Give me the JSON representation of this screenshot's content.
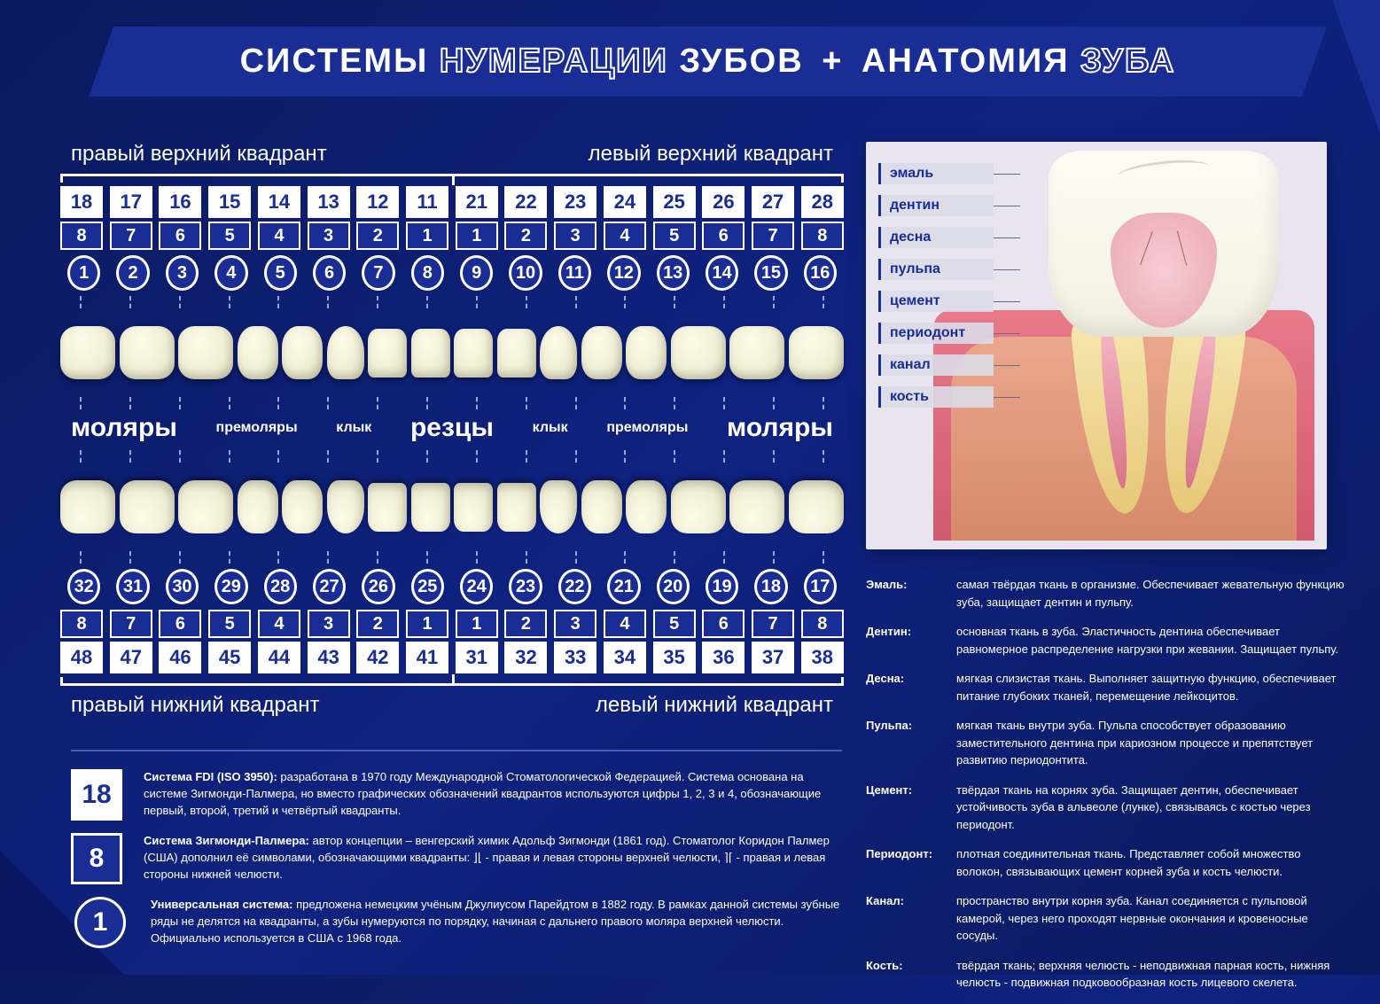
{
  "title": {
    "part1": "СИСТЕМЫ ",
    "part2_outline": "НУМЕРАЦИИ",
    "part3": " ЗУБОВ ",
    "plus": "+",
    "part4": " АНАТОМИЯ ",
    "part5_outline": "ЗУБА"
  },
  "colors": {
    "bg_dark": "#0a1a5e",
    "bg_mid": "#0f2280",
    "panel_blue": "#1a2d95",
    "white": "#ffffff",
    "tooth_light": "#fcfbe8",
    "tooth_shadow": "#e8e5c5",
    "gum": "#e87a8a",
    "bone": "#f0c890",
    "pulp": "#f5b8c4"
  },
  "quadrants": {
    "ur": "правый верхний квадрант",
    "ul": "левый верхний квадрант",
    "lr": "правый нижний квадрант",
    "ll": "левый нижний квадрант"
  },
  "upper": {
    "fdi": [
      "18",
      "17",
      "16",
      "15",
      "14",
      "13",
      "12",
      "11",
      "21",
      "22",
      "23",
      "24",
      "25",
      "26",
      "27",
      "28"
    ],
    "palmer": [
      "8",
      "7",
      "6",
      "5",
      "4",
      "3",
      "2",
      "1",
      "1",
      "2",
      "3",
      "4",
      "5",
      "6",
      "7",
      "8"
    ],
    "univ": [
      "1",
      "2",
      "3",
      "4",
      "5",
      "6",
      "7",
      "8",
      "9",
      "10",
      "11",
      "12",
      "13",
      "14",
      "15",
      "16"
    ]
  },
  "lower": {
    "univ": [
      "32",
      "31",
      "30",
      "29",
      "28",
      "27",
      "26",
      "25",
      "24",
      "23",
      "22",
      "21",
      "20",
      "19",
      "18",
      "17"
    ],
    "palmer": [
      "8",
      "7",
      "6",
      "5",
      "4",
      "3",
      "2",
      "1",
      "1",
      "2",
      "3",
      "4",
      "5",
      "6",
      "7",
      "8"
    ],
    "fdi": [
      "48",
      "47",
      "46",
      "45",
      "44",
      "43",
      "42",
      "41",
      "31",
      "32",
      "33",
      "34",
      "35",
      "36",
      "37",
      "38"
    ]
  },
  "tooth_types": {
    "molars": "моляры",
    "premolars": "премоляры",
    "canine": "клык",
    "incisors": "резцы"
  },
  "tooth_shape_seq": [
    "molar",
    "molar",
    "molar",
    "premolar",
    "premolar",
    "canine",
    "incisor",
    "incisor",
    "incisor",
    "incisor",
    "canine",
    "premolar",
    "premolar",
    "molar",
    "molar",
    "molar"
  ],
  "legend": {
    "fdi": {
      "badge": "18",
      "title": "Система FDI (ISO 3950):",
      "text": "разработана в 1970 году Международной Стоматологической Федерацией. Система основана на системе Зигмонди-Палмера, но вместо графических обозначений квадрантов используются цифры 1, 2, 3 и 4, обозначающие первый, второй, третий и четвёртый квадранты."
    },
    "palmer": {
      "badge": "8",
      "title": "Система Зигмонди-Палмера:",
      "text": "автор концепции – венгерский химик Адольф Зигмонди (1861 год). Стоматолог Коридон Палмер (США) дополнил её символами, обозначающими квадранты: ⌋⌊ - правая и левая стороны верхней челюсти, ⌉⌈ - правая и левая стороны нижней челюсти."
    },
    "univ": {
      "badge": "1",
      "title": "Универсальная система:",
      "text": "предложена немецким учёным Джулиусом Парейдтом в 1882 году. В рамках данной системы зубные ряды не делятся на квадранты, а зубы нумеруются по порядку, начиная с дальнего правого моляра верхней челюсти. Официально используется в США с 1968 года."
    }
  },
  "anatomy_labels": [
    "эмаль",
    "дентин",
    "десна",
    "пульпа",
    "цемент",
    "периодонт",
    "канал",
    "кость"
  ],
  "definitions": [
    {
      "term": "Эмаль:",
      "text": "самая твёрдая ткань в организме. Обеспечивает жевательную функцию зуба, защищает дентин и пульпу."
    },
    {
      "term": "Дентин:",
      "text": "основная ткань в зуба. Эластичность дентина обеспечивает равномерное распределение нагрузки при жевании. Защищает пульпу."
    },
    {
      "term": "Десна:",
      "text": "мягкая слизистая ткань. Выполняет защитную функцию, обеспечивает питание глубоких тканей, перемещение лейкоцитов."
    },
    {
      "term": "Пульпа:",
      "text": "мягкая ткань внутри зуба. Пульпа способствует образованию заместительного дентина при кариозном процессе и препятствует развитию периодонтита."
    },
    {
      "term": "Цемент:",
      "text": "твёрдая ткань на корнях зуба. Защищает дентин, обеспечивает устойчивость зуба в альвеоле (лунке), связываясь с костью через периодонт."
    },
    {
      "term": "Периодонт:",
      "text": "плотная соединительная ткань. Представляет собой множество волокон, связывающих цемент корней зуба и кость челюсти."
    },
    {
      "term": "Канал:",
      "text": "пространство внутри корня зуба. Канал соединяется с пульповой камерой, через него проходят нервные окончания и кровеносные сосуды."
    },
    {
      "term": "Кость:",
      "text": "твёрдая ткань; верхняя челюсть - неподвижная парная кость, нижняя челюсть - подвижная подковообразная кость лицевого скелета."
    }
  ]
}
